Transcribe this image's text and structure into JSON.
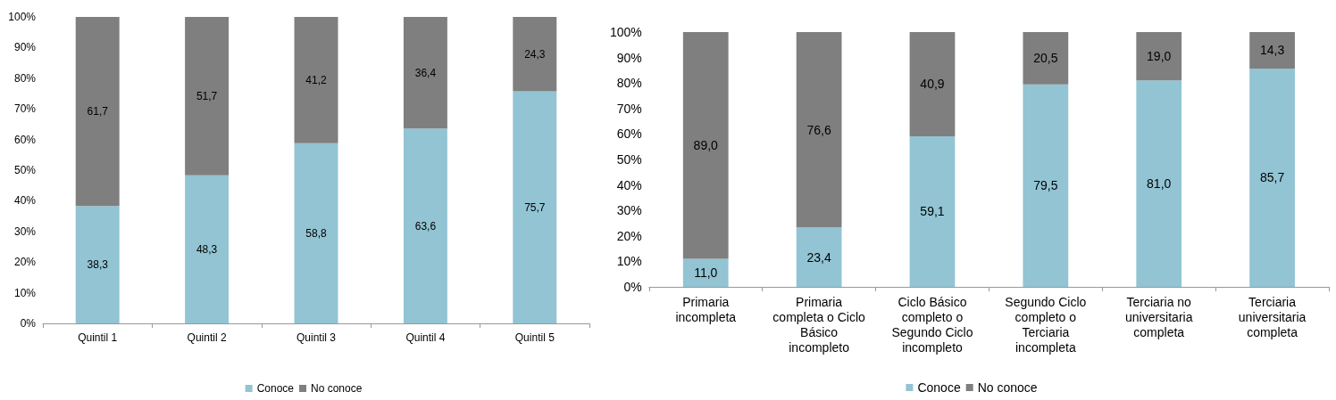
{
  "chart_data": [
    {
      "type": "bar",
      "stacked": true,
      "categories": [
        "Quintil 1",
        "Quintil 2",
        "Quintil 3",
        "Quintil 4",
        "Quintil 5"
      ],
      "series": [
        {
          "name": "Conoce",
          "color": "#92c4d3",
          "values": [
            38.3,
            48.3,
            58.8,
            63.6,
            75.7
          ],
          "value_labels": [
            "38,3",
            "48,3",
            "58,8",
            "63,6",
            "75,7"
          ]
        },
        {
          "name": "No conoce",
          "color": "#7f7f7f",
          "values": [
            61.7,
            51.7,
            41.2,
            36.4,
            24.3
          ],
          "value_labels": [
            "61,7",
            "51,7",
            "41,2",
            "36,4",
            "24,3"
          ]
        }
      ],
      "ylim": [
        0,
        100
      ],
      "yticks": [
        {
          "value": 0,
          "label": "0%"
        },
        {
          "value": 10,
          "label": "10%"
        },
        {
          "value": 20,
          "label": "20%"
        },
        {
          "value": 30,
          "label": "30%"
        },
        {
          "value": 40,
          "label": "40%"
        },
        {
          "value": 50,
          "label": "50%"
        },
        {
          "value": 60,
          "label": "60%"
        },
        {
          "value": 70,
          "label": "70%"
        },
        {
          "value": 80,
          "label": "80%"
        },
        {
          "value": 90,
          "label": "90%"
        },
        {
          "value": 100,
          "label": "100%"
        }
      ],
      "grid": false,
      "legend": "bottom"
    },
    {
      "type": "bar",
      "stacked": true,
      "categories": [
        "Primaria\nincompleta",
        "Primaria\ncompleta o Ciclo\nBásico\nincompleto",
        "Ciclo Básico\ncompleto o\nSegundo Ciclo\nincompleto",
        "Segundo Ciclo\ncompleto o\nTerciaria\nincompleta",
        "Terciaria no\nuniversitaria\ncompleta",
        "Terciaria\nuniversitaria\ncompleta"
      ],
      "series": [
        {
          "name": "Conoce",
          "color": "#92c4d3",
          "values": [
            11.0,
            23.4,
            59.1,
            79.5,
            81.0,
            85.7
          ],
          "value_labels": [
            "11,0",
            "23,4",
            "59,1",
            "79,5",
            "81,0",
            "85,7"
          ]
        },
        {
          "name": "No conoce",
          "color": "#7f7f7f",
          "values": [
            89.0,
            76.6,
            40.9,
            20.5,
            19.0,
            14.3
          ],
          "value_labels": [
            "89,0",
            "76,6",
            "40,9",
            "20,5",
            "19,0",
            "14,3"
          ]
        }
      ],
      "ylim": [
        0,
        100
      ],
      "yticks": [
        {
          "value": 0,
          "label": "0%"
        },
        {
          "value": 10,
          "label": "10%"
        },
        {
          "value": 20,
          "label": "20%"
        },
        {
          "value": 30,
          "label": "30%"
        },
        {
          "value": 40,
          "label": "40%"
        },
        {
          "value": 50,
          "label": "50%"
        },
        {
          "value": 60,
          "label": "60%"
        },
        {
          "value": 70,
          "label": "70%"
        },
        {
          "value": 80,
          "label": "80%"
        },
        {
          "value": 90,
          "label": "90%"
        },
        {
          "value": 100,
          "label": "100%"
        }
      ],
      "grid": false,
      "legend": "bottom"
    }
  ]
}
